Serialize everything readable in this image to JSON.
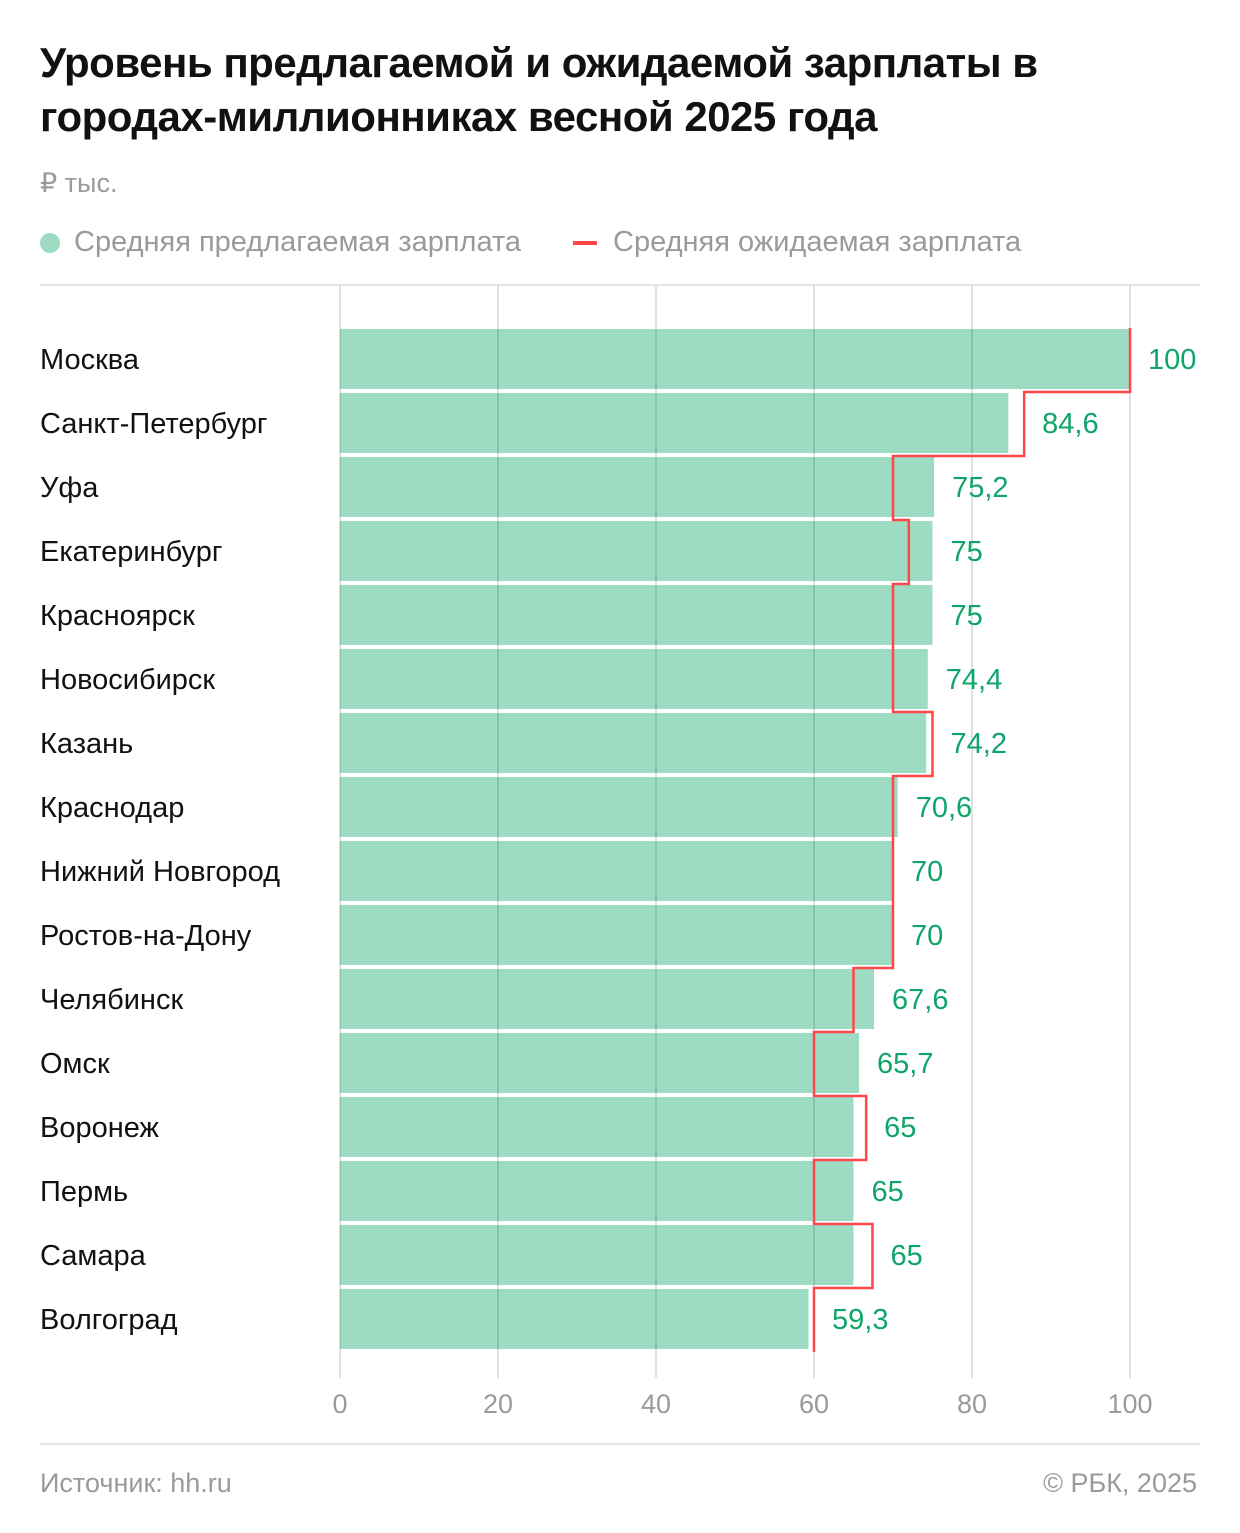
{
  "title": "Уровень предлагаемой и ожидаемой зарплаты в городах-миллионниках весной 2025 года",
  "unit": "₽ тыс.",
  "legend": {
    "offered": "Средняя предлагаемая зарплата",
    "expected": "Средняя ожидаемая зарплата"
  },
  "colors": {
    "offered": "#9ddcc3",
    "expected": "#ff4747",
    "label": "#0fa56a",
    "grid": "#dedede"
  },
  "source": "Источник: hh.ru",
  "copyright": "© РБК, 2025",
  "chart_data": {
    "type": "bar",
    "orientation": "horizontal",
    "title": "Уровень предлагаемой и ожидаемой зарплаты в городах-миллионниках весной 2025 года",
    "ylabel": "₽ тыс.",
    "xlim": [
      0,
      100
    ],
    "xticks": [
      "0",
      "20",
      "40",
      "60",
      "80",
      "100"
    ],
    "grid": true,
    "legend_position": "top-left",
    "categories": [
      "Москва",
      "Санкт-Петербург",
      "Уфа",
      "Екатеринбург",
      "Красноярск",
      "Новосибирск",
      "Казань",
      "Краснодар",
      "Нижний Новгород",
      "Ростов-на-Дону",
      "Челябинск",
      "Омск",
      "Воронеж",
      "Пермь",
      "Самара",
      "Волгоград"
    ],
    "series": [
      {
        "name": "Средняя предлагаемая зарплата",
        "type": "bar",
        "values": [
          100,
          84.6,
          75.2,
          75,
          75,
          74.4,
          74.2,
          70.6,
          70,
          70,
          67.6,
          65.7,
          65,
          65,
          65,
          59.3
        ],
        "labels": [
          "100",
          "84,6",
          "75,2",
          "75",
          "75",
          "74,4",
          "74,2",
          "70,6",
          "70",
          "70",
          "67,6",
          "65,7",
          "65",
          "65",
          "65",
          "59,3"
        ]
      },
      {
        "name": "Средняя ожидаемая зарплата",
        "type": "step",
        "values": [
          100,
          86.6,
          70,
          72,
          70,
          70,
          75,
          70,
          70,
          70,
          65,
          60,
          66.6,
          60,
          67.4,
          60
        ]
      }
    ]
  }
}
